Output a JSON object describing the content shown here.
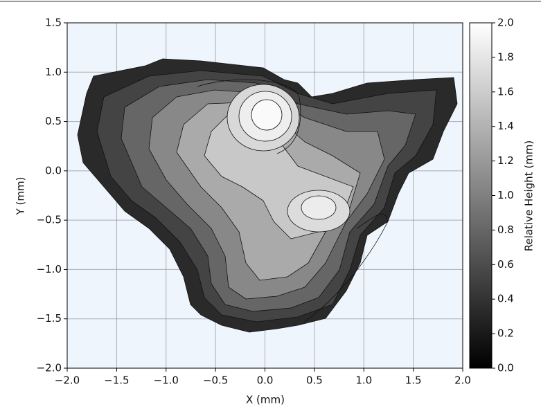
{
  "chart_data": {
    "type": "contour",
    "xlabel": "X (mm)",
    "ylabel": "Y (mm)",
    "xlim": [
      -2,
      2
    ],
    "ylim": [
      -2,
      1.5
    ],
    "xticks": [
      {
        "value": -2,
        "label": "−2.0"
      },
      {
        "value": -1.5,
        "label": "−1.5"
      },
      {
        "value": -1,
        "label": "−1.0"
      },
      {
        "value": -0.5,
        "label": "−0.5"
      },
      {
        "value": 0,
        "label": "0.0"
      },
      0.5,
      {
        "value": 1,
        "label": "1.0"
      },
      1.5,
      {
        "value": 2,
        "label": "2.0"
      }
    ],
    "yticks": [
      {
        "value": -2,
        "label": "−2.0"
      },
      {
        "value": -1.5,
        "label": "−1.5"
      },
      {
        "value": -1,
        "label": "−1.0"
      },
      {
        "value": -0.5,
        "label": "−0.5"
      },
      {
        "value": 0,
        "label": "0.0"
      },
      0.5,
      {
        "value": 1,
        "label": "1.0"
      },
      1.5
    ],
    "grid": true,
    "colormap": "gray",
    "colorbar": {
      "label": "Relative Height (mm)",
      "lim": [
        0,
        2
      ],
      "ticks": [
        {
          "value": 0,
          "label": "0.0"
        },
        0.2,
        0.4,
        0.6,
        0.8,
        {
          "value": 1,
          "label": "1.0"
        },
        1.2,
        1.4,
        1.6,
        1.8,
        {
          "value": 2,
          "label": "2.0"
        }
      ]
    }
  }
}
